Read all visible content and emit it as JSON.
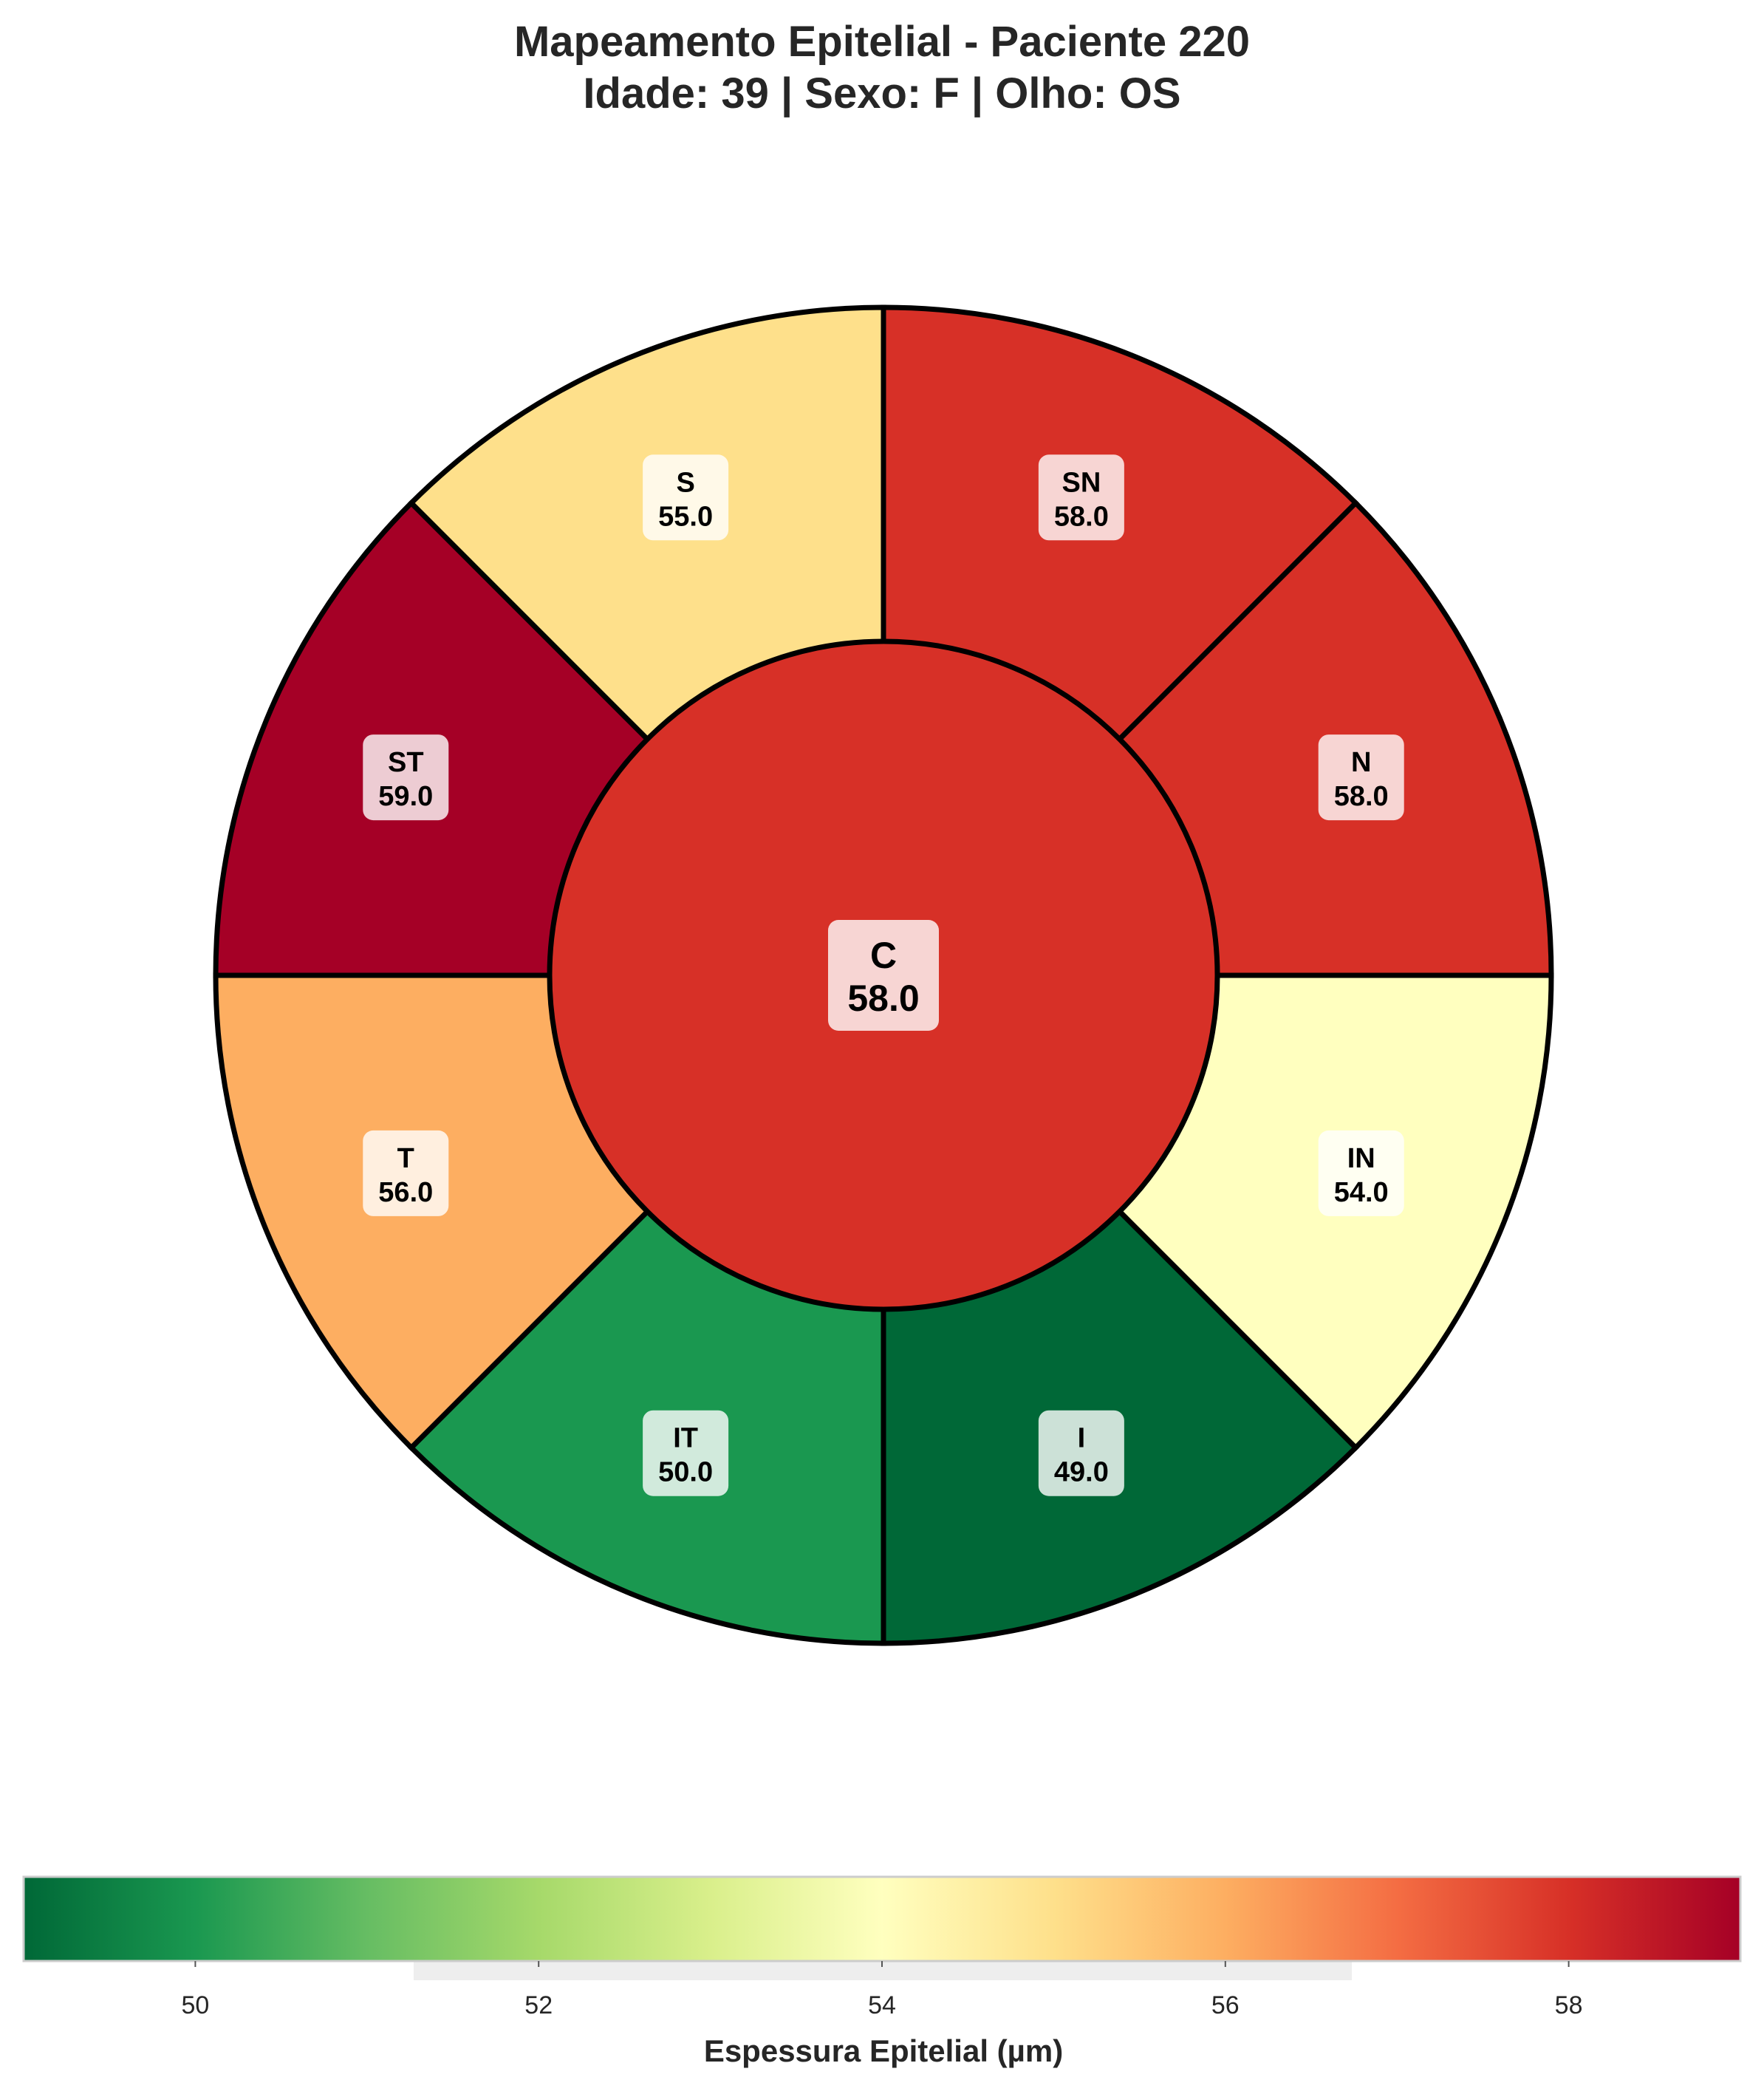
{
  "title_line1": "Mapeamento Epitelial - Paciente 220",
  "title_line2": "Idade: 39 | Sexo: F | Olho: OS",
  "chart_data": {
    "type": "polar-sector-map",
    "center": {
      "label": "C",
      "value": 58.0
    },
    "sectors": [
      {
        "label": "SN",
        "value": 58.0
      },
      {
        "label": "N",
        "value": 58.0
      },
      {
        "label": "IN",
        "value": 54.0
      },
      {
        "label": "I",
        "value": 49.0
      },
      {
        "label": "IT",
        "value": 50.0
      },
      {
        "label": "T",
        "value": 56.0
      },
      {
        "label": "ST",
        "value": 59.0
      },
      {
        "label": "S",
        "value": 55.0
      }
    ],
    "colormap": "RdYlGn_r",
    "colorbar": {
      "label": "Espessura Epitelial (µm)",
      "vmin": 49,
      "vmax": 59,
      "ticks": [
        50,
        52,
        54,
        56,
        58
      ]
    }
  }
}
